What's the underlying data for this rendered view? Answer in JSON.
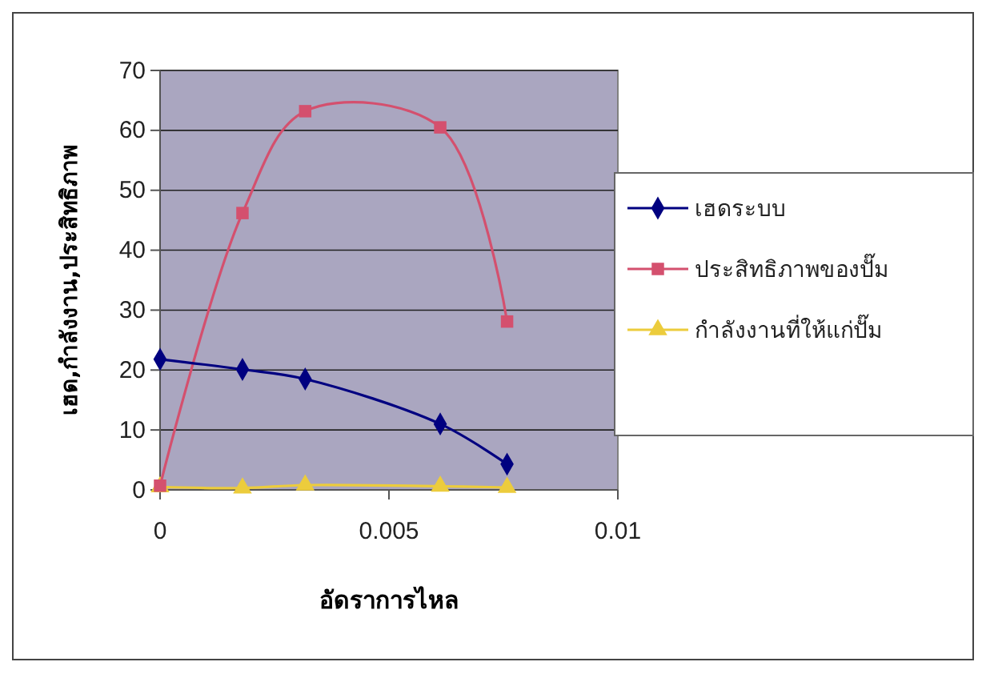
{
  "chart_data": {
    "type": "line",
    "xlabel": "อัดราการไหล",
    "ylabel": "เฮด,กำลังงาน,ประสิทธิภาพ",
    "x": [
      0,
      0.0018,
      0.00317,
      0.00612,
      0.00758
    ],
    "series": [
      {
        "name": "เฮดระบบ",
        "color": "#000080",
        "marker": "diamond",
        "values": [
          21.8,
          20.1,
          18.5,
          11,
          4.3
        ]
      },
      {
        "name": "ประสิทธิภาพของปั๊ม",
        "color": "#d4506e",
        "marker": "square",
        "values": [
          0.7,
          46.2,
          63.2,
          60.5,
          28.1
        ]
      },
      {
        "name": "กำลังงานที่ให้แก่ปั๊ม",
        "color": "#eccc3c",
        "marker": "triangle",
        "values": [
          0.5,
          0.3,
          0.8,
          0.6,
          0.4
        ]
      }
    ],
    "xlim": [
      0,
      0.01
    ],
    "xticks": [
      0,
      0.005,
      0.01
    ],
    "ylim": [
      0,
      70
    ],
    "yticks": [
      0,
      10,
      20,
      30,
      40,
      50,
      60,
      70
    ],
    "grid": "y",
    "legend": "right"
  }
}
